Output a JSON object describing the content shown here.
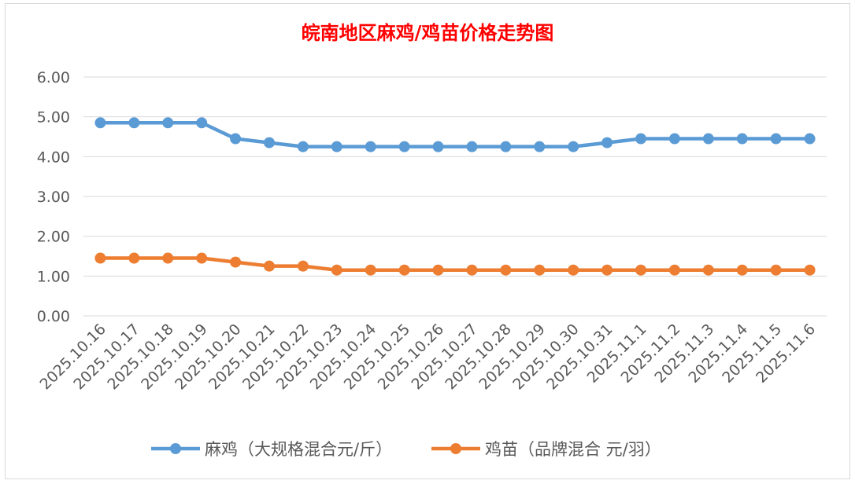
{
  "chart_data": {
    "type": "line",
    "title": "皖南地区麻鸡/鸡苗价格走势图",
    "xlabel": "",
    "ylabel": "",
    "ylim": [
      0,
      6
    ],
    "yticks": [
      "0.00",
      "1.00",
      "2.00",
      "3.00",
      "4.00",
      "5.00",
      "6.00"
    ],
    "grid": true,
    "legend_position": "bottom",
    "categories": [
      "2025.10.16",
      "2025.10.17",
      "2025.10.18",
      "2025.10.19",
      "2025.10.20",
      "2025.10.21",
      "2025.10.22",
      "2025.10.23",
      "2025.10.24",
      "2025.10.25",
      "2025.10.26",
      "2025.10.27",
      "2025.10.28",
      "2025.10.29",
      "2025.10.30",
      "2025.10.31",
      "2025.11.1",
      "2025.11.2",
      "2025.11.3",
      "2025.11.4",
      "2025.11.5",
      "2025.11.6"
    ],
    "series": [
      {
        "name": "麻鸡（大规格混合元/斤）",
        "color": "#5b9bd5",
        "values": [
          4.85,
          4.85,
          4.85,
          4.85,
          4.45,
          4.35,
          4.25,
          4.25,
          4.25,
          4.25,
          4.25,
          4.25,
          4.25,
          4.25,
          4.25,
          4.35,
          4.45,
          4.45,
          4.45,
          4.45,
          4.45,
          4.45
        ]
      },
      {
        "name": "鸡苗（品牌混合 元/羽）",
        "color": "#ed7d31",
        "values": [
          1.45,
          1.45,
          1.45,
          1.45,
          1.35,
          1.25,
          1.25,
          1.15,
          1.15,
          1.15,
          1.15,
          1.15,
          1.15,
          1.15,
          1.15,
          1.15,
          1.15,
          1.15,
          1.15,
          1.15,
          1.15,
          1.15
        ]
      }
    ]
  }
}
